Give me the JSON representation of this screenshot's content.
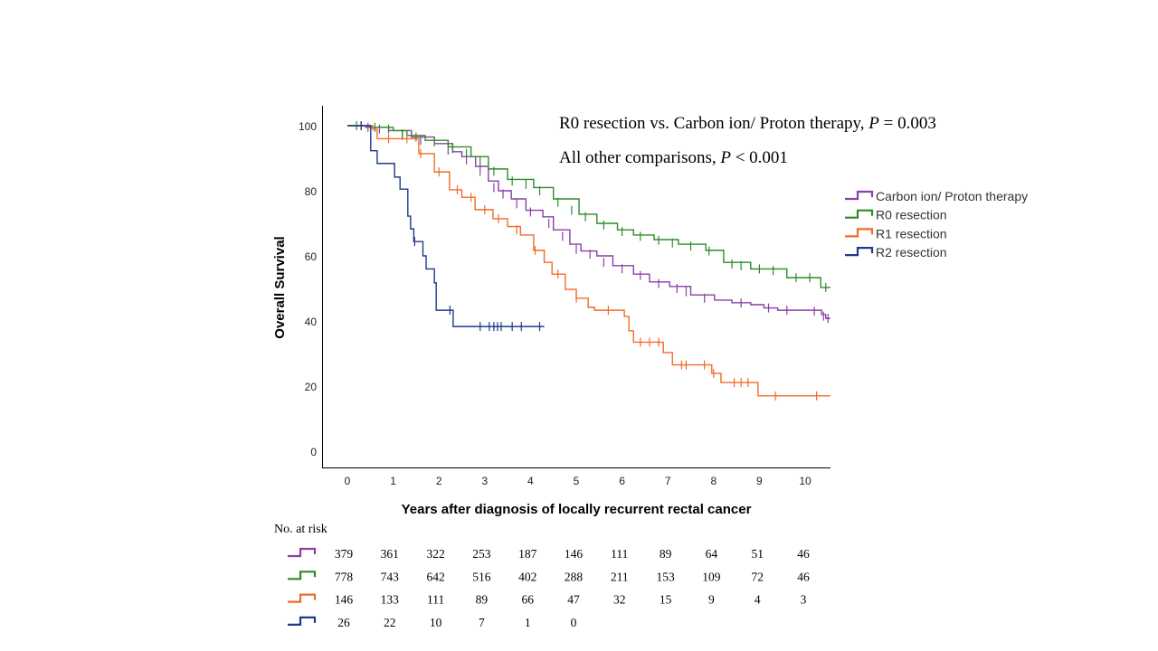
{
  "chart_data": {
    "type": "line",
    "subtype": "kaplan-meier",
    "title": "",
    "annotations": [
      {
        "text_pre": "R0 resection vs. Carbon ion/ Proton therapy, ",
        "italic": "P",
        "text_post": " = 0.003"
      },
      {
        "text_pre": "All other comparisons, ",
        "italic": "P",
        "text_post": " < 0.001"
      }
    ],
    "xlabel": "Years after diagnosis of locally recurrent rectal cancer",
    "ylabel": "Overall Survival",
    "xlim": [
      -0.05,
      10.55
    ],
    "ylim": [
      -5,
      105
    ],
    "xticks": [
      0,
      1,
      2,
      3,
      4,
      5,
      6,
      7,
      8,
      9,
      10
    ],
    "yticks": [
      0,
      20,
      40,
      60,
      80,
      100
    ],
    "grid": false,
    "legend_position": "right",
    "series": [
      {
        "name": "Carbon ion/ Proton therapy",
        "color": "#8B3FA8",
        "steps": [
          [
            0,
            100
          ],
          [
            0.4,
            99.5
          ],
          [
            0.9,
            98.5
          ],
          [
            1.4,
            96.5
          ],
          [
            1.9,
            94.5
          ],
          [
            2.3,
            92
          ],
          [
            2.5,
            90.5
          ],
          [
            2.8,
            87.5
          ],
          [
            3.08,
            83
          ],
          [
            3.3,
            80
          ],
          [
            3.58,
            77.5
          ],
          [
            3.9,
            74
          ],
          [
            4.27,
            72
          ],
          [
            4.5,
            68
          ],
          [
            4.86,
            63.6
          ],
          [
            5.1,
            61.5
          ],
          [
            5.45,
            60
          ],
          [
            5.8,
            57
          ],
          [
            6.25,
            54.4
          ],
          [
            6.6,
            52
          ],
          [
            7.04,
            50.6
          ],
          [
            7.5,
            48
          ],
          [
            8.02,
            46.4
          ],
          [
            8.4,
            45.6
          ],
          [
            8.81,
            45
          ],
          [
            9.1,
            44
          ],
          [
            9.4,
            43.3
          ],
          [
            10.36,
            42
          ],
          [
            10.45,
            40.8
          ]
        ],
        "censored": [
          [
            0.3,
            100
          ],
          [
            0.45,
            99.5
          ],
          [
            0.7,
            99
          ],
          [
            1.2,
            97
          ],
          [
            1.6,
            95.5
          ],
          [
            2.2,
            92.5
          ],
          [
            2.6,
            89.5
          ],
          [
            2.9,
            86
          ],
          [
            3.2,
            81
          ],
          [
            3.4,
            79
          ],
          [
            3.7,
            76
          ],
          [
            4.0,
            73.5
          ],
          [
            4.4,
            70
          ],
          [
            4.7,
            66
          ],
          [
            5.0,
            62
          ],
          [
            5.3,
            60.5
          ],
          [
            5.6,
            58
          ],
          [
            6.0,
            56
          ],
          [
            6.4,
            54
          ],
          [
            6.8,
            51.5
          ],
          [
            7.2,
            50
          ],
          [
            7.4,
            49
          ],
          [
            7.8,
            47
          ],
          [
            8.6,
            45.5
          ],
          [
            9.2,
            44
          ],
          [
            9.6,
            43.3
          ],
          [
            10.2,
            43
          ],
          [
            10.4,
            41.5
          ],
          [
            10.5,
            40.8
          ]
        ],
        "at_risk": [
          379,
          361,
          322,
          253,
          187,
          146,
          111,
          89,
          64,
          51,
          46
        ]
      },
      {
        "name": "R0 resection",
        "color": "#2C8C28",
        "steps": [
          [
            0,
            100
          ],
          [
            0.5,
            99.5
          ],
          [
            1.0,
            98.5
          ],
          [
            1.3,
            97
          ],
          [
            1.7,
            95.5
          ],
          [
            2.2,
            93.5
          ],
          [
            2.7,
            90.5
          ],
          [
            3.08,
            86.7
          ],
          [
            3.5,
            83.5
          ],
          [
            4.07,
            81
          ],
          [
            4.5,
            77.5
          ],
          [
            5.06,
            72.8
          ],
          [
            5.45,
            70
          ],
          [
            5.9,
            68
          ],
          [
            6.25,
            66.4
          ],
          [
            6.7,
            65
          ],
          [
            7.23,
            63.6
          ],
          [
            7.83,
            61.7
          ],
          [
            8.22,
            58
          ],
          [
            8.81,
            56
          ],
          [
            9.6,
            53.3
          ],
          [
            10.34,
            50.3
          ]
        ],
        "censored": [
          [
            0.2,
            100
          ],
          [
            0.6,
            99.5
          ],
          [
            0.9,
            99
          ],
          [
            1.2,
            97.5
          ],
          [
            1.5,
            96.5
          ],
          [
            1.9,
            95
          ],
          [
            2.3,
            93
          ],
          [
            2.6,
            91.5
          ],
          [
            2.9,
            89
          ],
          [
            3.2,
            86
          ],
          [
            3.6,
            83
          ],
          [
            3.9,
            82
          ],
          [
            4.2,
            80
          ],
          [
            4.6,
            76.5
          ],
          [
            4.9,
            74
          ],
          [
            5.2,
            72
          ],
          [
            5.6,
            69.5
          ],
          [
            6.0,
            67.5
          ],
          [
            6.4,
            66
          ],
          [
            6.8,
            64.8
          ],
          [
            7.1,
            64
          ],
          [
            7.5,
            63
          ],
          [
            7.9,
            61.5
          ],
          [
            8.4,
            57.5
          ],
          [
            8.6,
            57
          ],
          [
            9.0,
            56
          ],
          [
            9.3,
            55.5
          ],
          [
            9.8,
            53.3
          ],
          [
            10.1,
            53.3
          ],
          [
            10.45,
            50.3
          ]
        ],
        "at_risk": [
          778,
          743,
          642,
          516,
          402,
          288,
          211,
          153,
          109,
          72,
          46
        ]
      },
      {
        "name": "R1 resection",
        "color": "#F26B2A",
        "steps": [
          [
            0,
            100
          ],
          [
            0.55,
            98.9
          ],
          [
            0.65,
            96
          ],
          [
            1.56,
            91.4
          ],
          [
            1.9,
            85.8
          ],
          [
            2.23,
            80.3
          ],
          [
            2.5,
            78
          ],
          [
            2.79,
            74.2
          ],
          [
            3.18,
            71.4
          ],
          [
            3.5,
            69
          ],
          [
            3.78,
            66.4
          ],
          [
            4.07,
            61.7
          ],
          [
            4.3,
            58
          ],
          [
            4.47,
            54.4
          ],
          [
            4.76,
            49.7
          ],
          [
            5.0,
            47
          ],
          [
            5.26,
            44.2
          ],
          [
            5.4,
            43.3
          ],
          [
            6.05,
            41.4
          ],
          [
            6.15,
            37
          ],
          [
            6.25,
            33.5
          ],
          [
            6.9,
            30.3
          ],
          [
            7.1,
            26.5
          ],
          [
            7.96,
            23.9
          ],
          [
            8.16,
            21.1
          ],
          [
            8.97,
            17
          ]
        ],
        "censored": [
          [
            0.3,
            100
          ],
          [
            0.9,
            96
          ],
          [
            1.3,
            96
          ],
          [
            1.6,
            91.4
          ],
          [
            2.0,
            85.8
          ],
          [
            2.4,
            80.3
          ],
          [
            2.7,
            78
          ],
          [
            3.0,
            74.2
          ],
          [
            3.3,
            71.4
          ],
          [
            3.7,
            68
          ],
          [
            4.1,
            61.7
          ],
          [
            4.6,
            54.4
          ],
          [
            5.0,
            47
          ],
          [
            5.7,
            43.3
          ],
          [
            6.4,
            33.5
          ],
          [
            6.6,
            33.5
          ],
          [
            6.8,
            33.5
          ],
          [
            6.9,
            31.5
          ],
          [
            7.3,
            26.5
          ],
          [
            7.4,
            26.5
          ],
          [
            7.8,
            26.5
          ],
          [
            8.0,
            23.9
          ],
          [
            8.45,
            21.1
          ],
          [
            8.6,
            21.1
          ],
          [
            8.75,
            21.1
          ],
          [
            9.35,
            17
          ],
          [
            10.25,
            17
          ]
        ],
        "at_risk": [
          146,
          133,
          111,
          89,
          66,
          47,
          32,
          15,
          9,
          4,
          3
        ]
      },
      {
        "name": "R2 resection",
        "color": "#1E3A8A",
        "steps": [
          [
            0,
            100
          ],
          [
            0.51,
            92.3
          ],
          [
            0.65,
            88.4
          ],
          [
            1.03,
            84.2
          ],
          [
            1.15,
            80.5
          ],
          [
            1.32,
            72.2
          ],
          [
            1.38,
            68.3
          ],
          [
            1.45,
            64.4
          ],
          [
            1.65,
            60
          ],
          [
            1.72,
            56
          ],
          [
            1.9,
            51.7
          ],
          [
            1.94,
            43.3
          ],
          [
            2.31,
            38.3
          ]
        ],
        "censored": [
          [
            0.3,
            100
          ],
          [
            1.47,
            64.4
          ],
          [
            2.24,
            43.3
          ],
          [
            2.9,
            38.3
          ],
          [
            3.1,
            38.3
          ],
          [
            3.2,
            38.3
          ],
          [
            3.28,
            38.3
          ],
          [
            3.36,
            38.3
          ],
          [
            3.6,
            38.3
          ],
          [
            3.8,
            38.3
          ],
          [
            4.2,
            38.3
          ]
        ],
        "end_x": 4.3,
        "at_risk": [
          26,
          22,
          10,
          7,
          1,
          0
        ]
      }
    ],
    "risk_table": {
      "title": "No. at risk"
    }
  }
}
